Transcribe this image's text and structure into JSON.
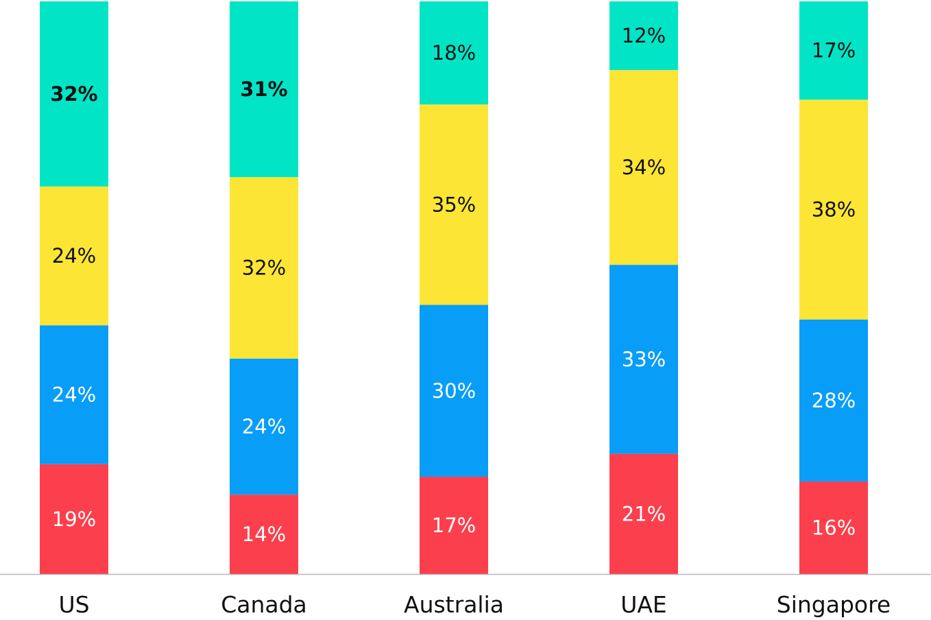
{
  "chart_data": {
    "type": "bar",
    "stacked": true,
    "normalized": true,
    "categories": [
      "US",
      "Canada",
      "Australia",
      "UAE",
      "Singapore"
    ],
    "series": [
      {
        "color": "#fc3f4d",
        "label_color": "#ffffff",
        "values": [
          19,
          14,
          17,
          21,
          16
        ],
        "labels": [
          "19%",
          "14%",
          "17%",
          "21%",
          "16%"
        ]
      },
      {
        "color": "#089df7",
        "label_color": "#ffffff",
        "values": [
          24,
          24,
          30,
          33,
          28
        ],
        "labels": [
          "24%",
          "24%",
          "30%",
          "33%",
          "28%"
        ]
      },
      {
        "color": "#fde536",
        "label_color": "#111111",
        "values": [
          24,
          32,
          35,
          34,
          38
        ],
        "labels": [
          "24%",
          "32%",
          "35%",
          "34%",
          "38%"
        ]
      },
      {
        "color": "#01e5c6",
        "label_color": "#111111",
        "values": [
          32,
          31,
          18,
          12,
          17
        ],
        "labels": [
          "32%",
          "31%",
          "18%",
          "12%",
          "17%"
        ],
        "bold_labels": [
          true,
          true,
          false,
          false,
          false
        ]
      }
    ],
    "ylim": [
      0,
      100
    ],
    "grid": false,
    "legend": "none"
  }
}
